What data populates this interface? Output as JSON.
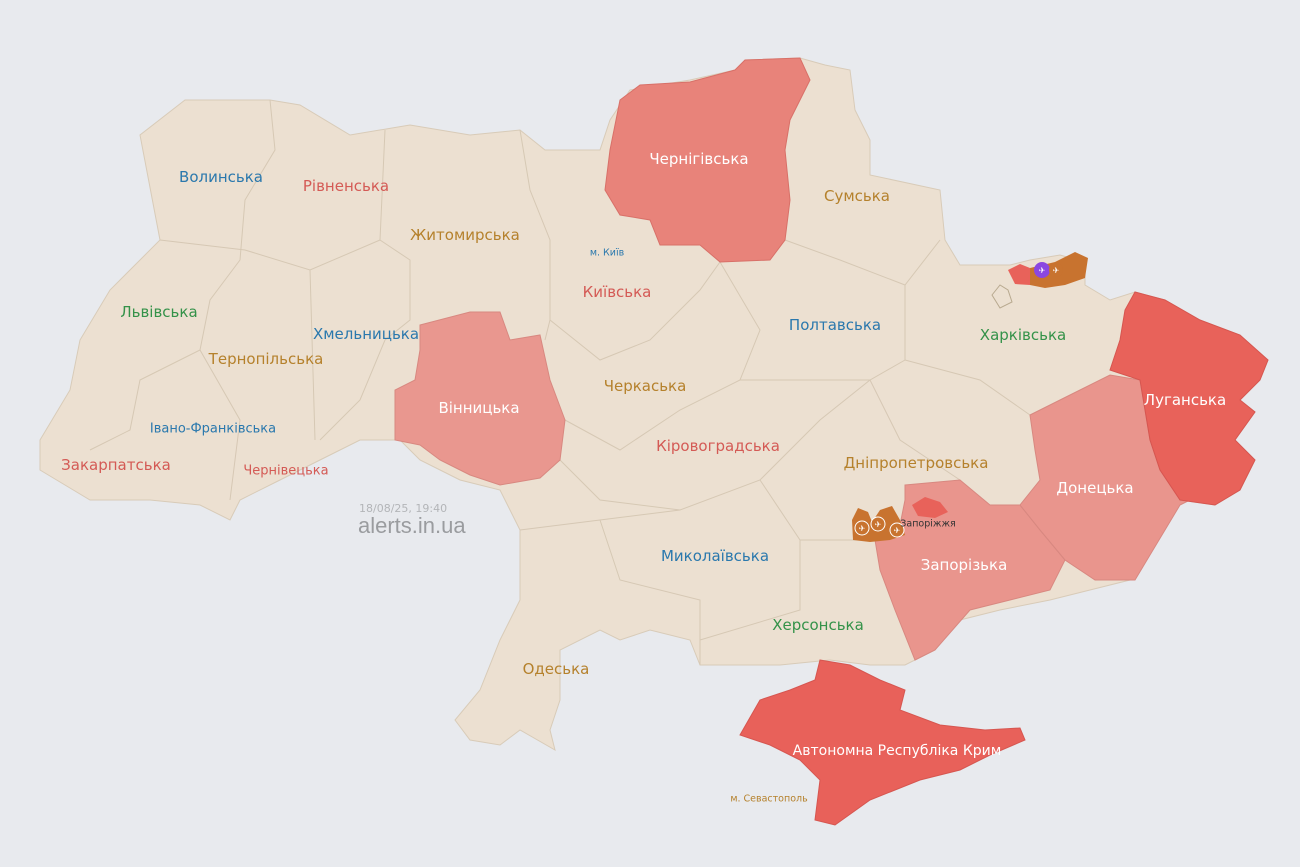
{
  "watermark": {
    "timestamp": "18/08/25, 19:40",
    "site": "alerts.in.ua"
  },
  "colors": {
    "background": "#e8eaee",
    "land": "#ece0d1",
    "alert_high": "#e8625a",
    "alert_mid": "#e8837a",
    "alert_light": "#e9978f",
    "hromada_alert": "#c8732f",
    "icon_purple": "#8b47e0"
  },
  "regions": [
    {
      "name": "Волинська",
      "status": "none"
    },
    {
      "name": "Рівненська",
      "status": "none"
    },
    {
      "name": "Житомирська",
      "status": "none"
    },
    {
      "name": "Чернігівська",
      "status": "alert"
    },
    {
      "name": "Сумська",
      "status": "none"
    },
    {
      "name": "м. Київ",
      "status": "none"
    },
    {
      "name": "Київська",
      "status": "none"
    },
    {
      "name": "Львівська",
      "status": "none"
    },
    {
      "name": "Хмельницька",
      "status": "none"
    },
    {
      "name": "Тернопільська",
      "status": "none"
    },
    {
      "name": "Полтавська",
      "status": "none"
    },
    {
      "name": "Харківська",
      "status": "partial"
    },
    {
      "name": "Вінницька",
      "status": "alert"
    },
    {
      "name": "Черкаська",
      "status": "none"
    },
    {
      "name": "Луганська",
      "status": "alert"
    },
    {
      "name": "Івано-Франківська",
      "status": "none"
    },
    {
      "name": "Кіровоградська",
      "status": "none"
    },
    {
      "name": "Закарпатська",
      "status": "none"
    },
    {
      "name": "Чернівецька",
      "status": "none"
    },
    {
      "name": "Дніпропетровська",
      "status": "partial"
    },
    {
      "name": "Донецька",
      "status": "alert"
    },
    {
      "name": "Запоріжжя",
      "status": "alert"
    },
    {
      "name": "Миколаївська",
      "status": "none"
    },
    {
      "name": "Запорізька",
      "status": "alert"
    },
    {
      "name": "Херсонська",
      "status": "none"
    },
    {
      "name": "Одеська",
      "status": "none"
    },
    {
      "name": "Автономна Республіка Крим",
      "status": "alert"
    },
    {
      "name": "м. Севастополь",
      "status": "none"
    }
  ],
  "icons": [
    "artillery-icon",
    "drone-icon"
  ]
}
